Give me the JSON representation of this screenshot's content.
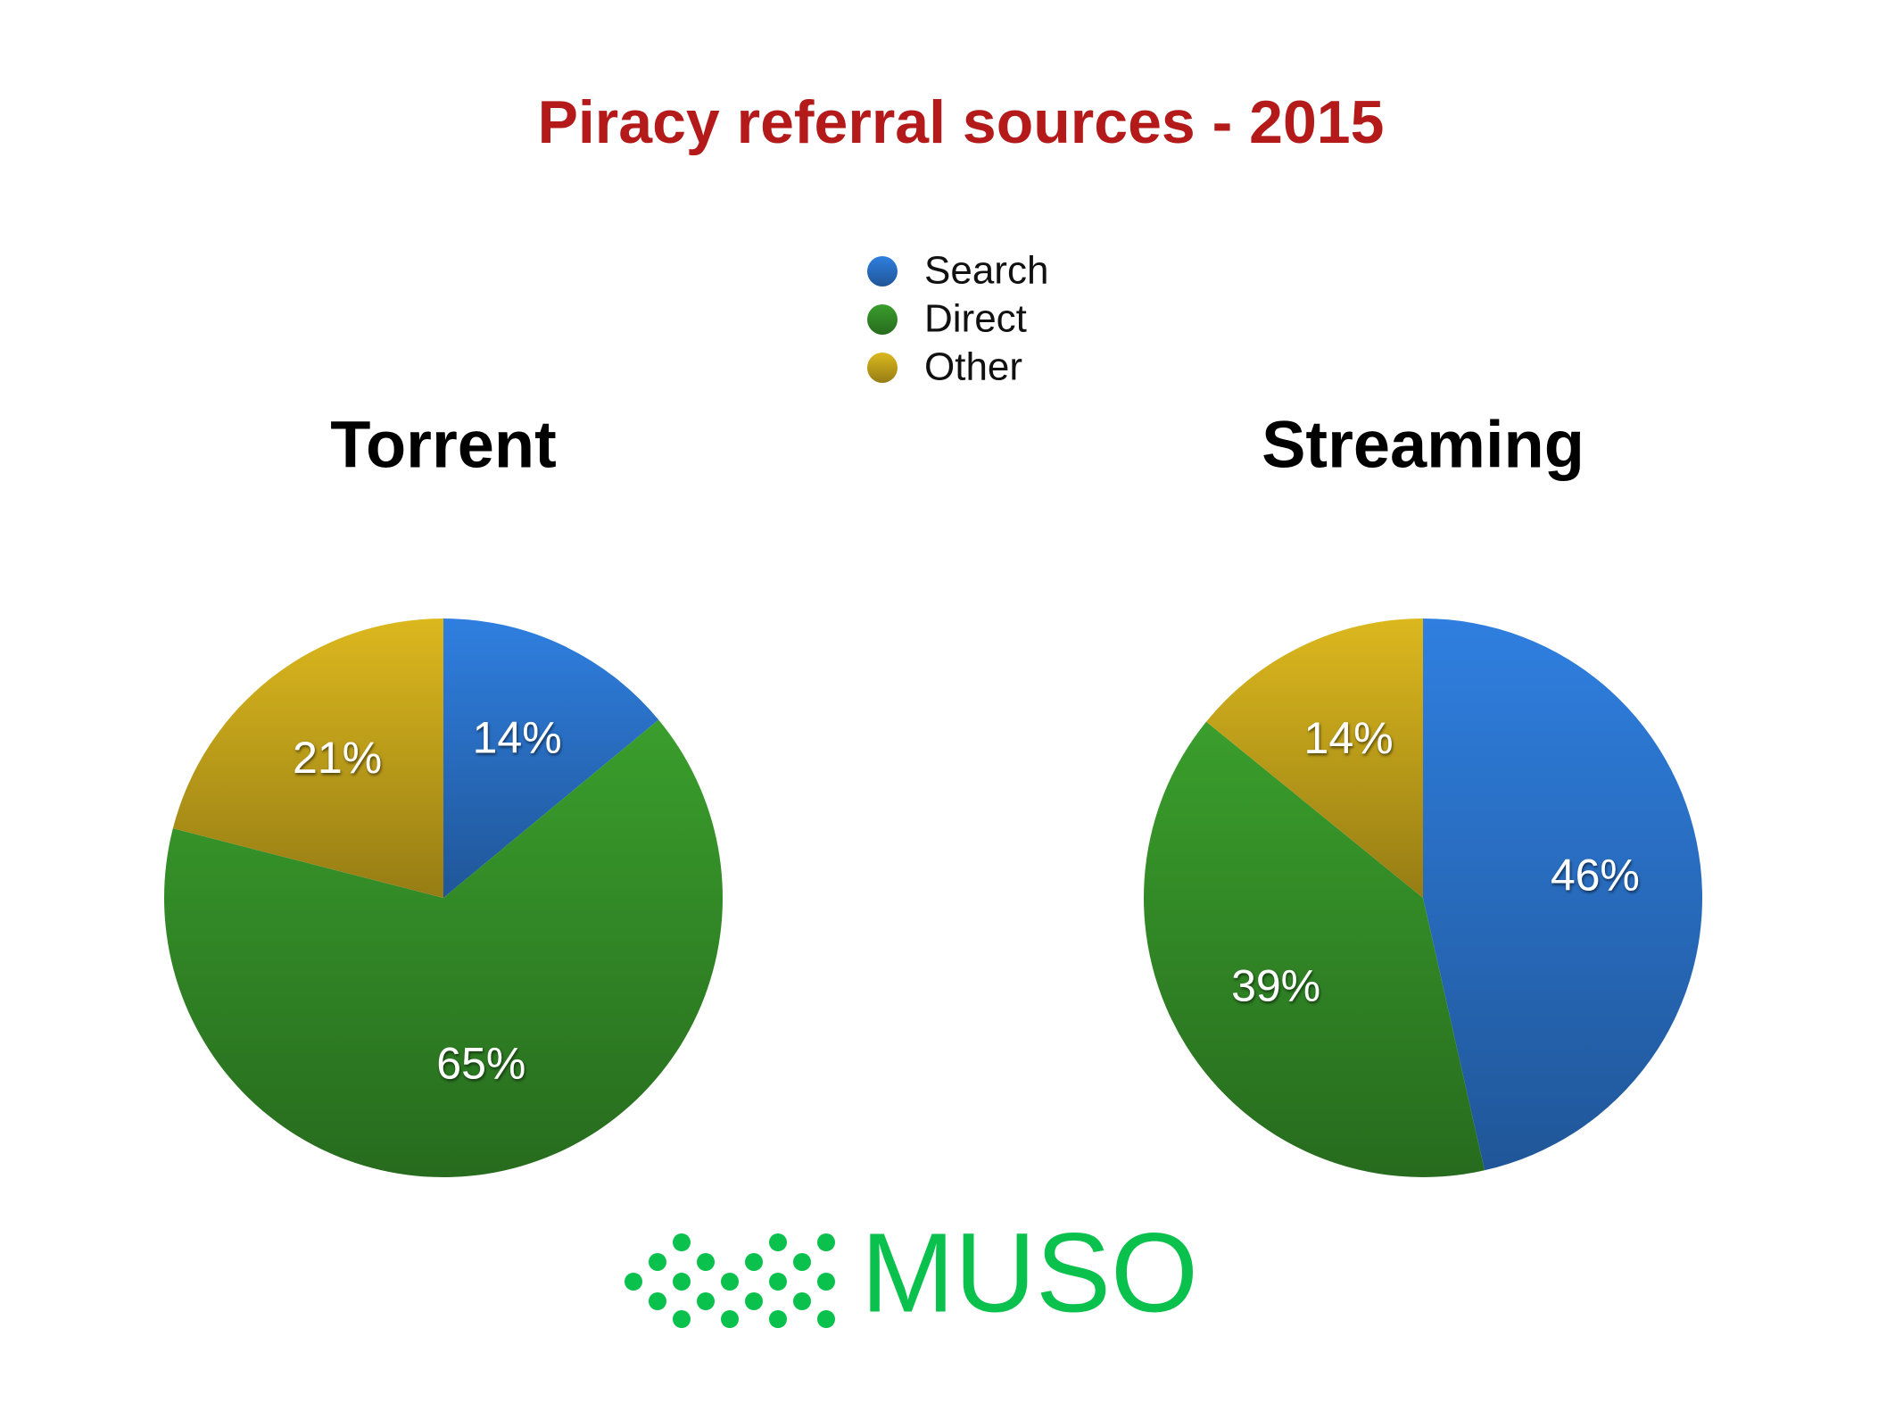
{
  "title": "Piracy referral sources - 2015",
  "logo": "MUSO",
  "chart_data": [
    {
      "type": "pie",
      "title": "Torrent",
      "categories": [
        "Search",
        "Direct",
        "Other"
      ],
      "values": [
        14,
        65,
        21
      ],
      "value_labels": [
        "14%",
        "65%",
        "21%"
      ],
      "colors": [
        "#2f7fe0",
        "#3a9e2c",
        "#dcb81e"
      ]
    },
    {
      "type": "pie",
      "title": "Streaming",
      "categories": [
        "Search",
        "Direct",
        "Other"
      ],
      "values": [
        46,
        39,
        14
      ],
      "value_labels": [
        "46%",
        "39%",
        "14%"
      ],
      "colors": [
        "#2f7fe0",
        "#3a9e2c",
        "#dcb81e"
      ]
    }
  ]
}
